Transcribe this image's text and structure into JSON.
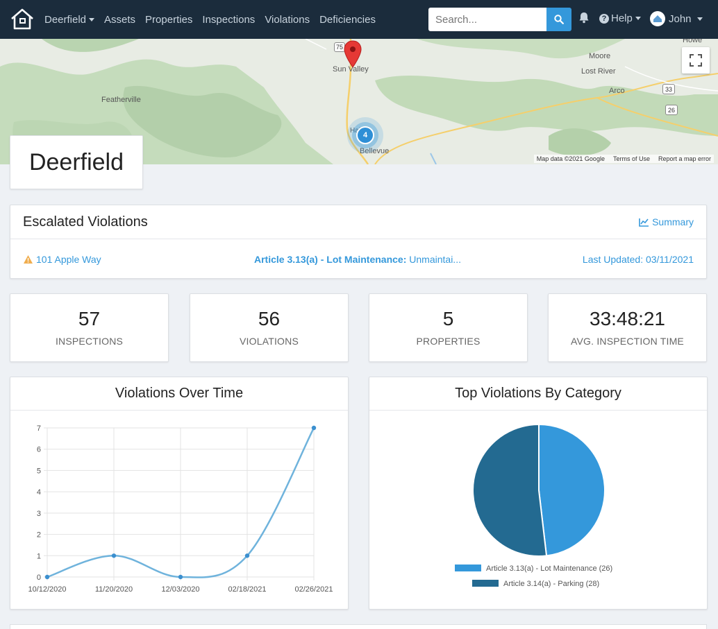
{
  "nav": {
    "items": [
      {
        "label": "Deerfield",
        "dropdown": true
      },
      {
        "label": "Assets",
        "dropdown": false
      },
      {
        "label": "Properties",
        "dropdown": false
      },
      {
        "label": "Inspections",
        "dropdown": false
      },
      {
        "label": "Violations",
        "dropdown": false
      },
      {
        "label": "Deficiencies",
        "dropdown": false
      }
    ],
    "search_placeholder": "Search...",
    "help_label": "Help",
    "user_label": "John"
  },
  "map": {
    "places": [
      "Sun Valley",
      "Featherville",
      "Moore",
      "Lost River",
      "Arco",
      "Howe",
      "Bellevue",
      "Hailey"
    ],
    "route_shields": [
      "75",
      "33",
      "26"
    ],
    "cluster_count": "4",
    "footer": {
      "data": "Map data ©2021 Google",
      "terms": "Terms of Use",
      "report": "Report a map error"
    }
  },
  "page_title": "Deerfield",
  "escalated": {
    "title": "Escalated Violations",
    "summary_label": "Summary",
    "row": {
      "address": "101 Apple Way",
      "article": "Article 3.13(a) - Lot Maintenance:",
      "description": "Unmaintai...",
      "updated": "Last Updated: 03/11/2021"
    }
  },
  "stats": [
    {
      "value": "57",
      "label": "INSPECTIONS"
    },
    {
      "value": "56",
      "label": "VIOLATIONS"
    },
    {
      "value": "5",
      "label": "PROPERTIES"
    },
    {
      "value": "33:48:21",
      "label": "AVG. INSPECTION TIME"
    }
  ],
  "colors": {
    "accent": "#3498db",
    "navbar": "#1b2c3c",
    "pie_light": "#3498db",
    "pie_dark": "#236a91",
    "line": "#6fb3dc"
  },
  "chart_data": [
    {
      "type": "line",
      "title": "Violations Over Time",
      "x": [
        "10/12/2020",
        "11/20/2020",
        "12/03/2020",
        "02/18/2021",
        "02/26/2021"
      ],
      "values": [
        0,
        1,
        0,
        1,
        7
      ],
      "ylim": [
        0,
        7
      ],
      "yticks": [
        0,
        1,
        2,
        3,
        4,
        5,
        6,
        7
      ],
      "grid": true,
      "xlabel": "",
      "ylabel": ""
    },
    {
      "type": "pie",
      "title": "Top Violations By Category",
      "legend_position": "bottom",
      "slices": [
        {
          "label": "Article 3.13(a) - Lot Maintenance (26)",
          "value": 26
        },
        {
          "label": "Article 3.14(a) - Parking (28)",
          "value": 28
        }
      ]
    }
  ]
}
